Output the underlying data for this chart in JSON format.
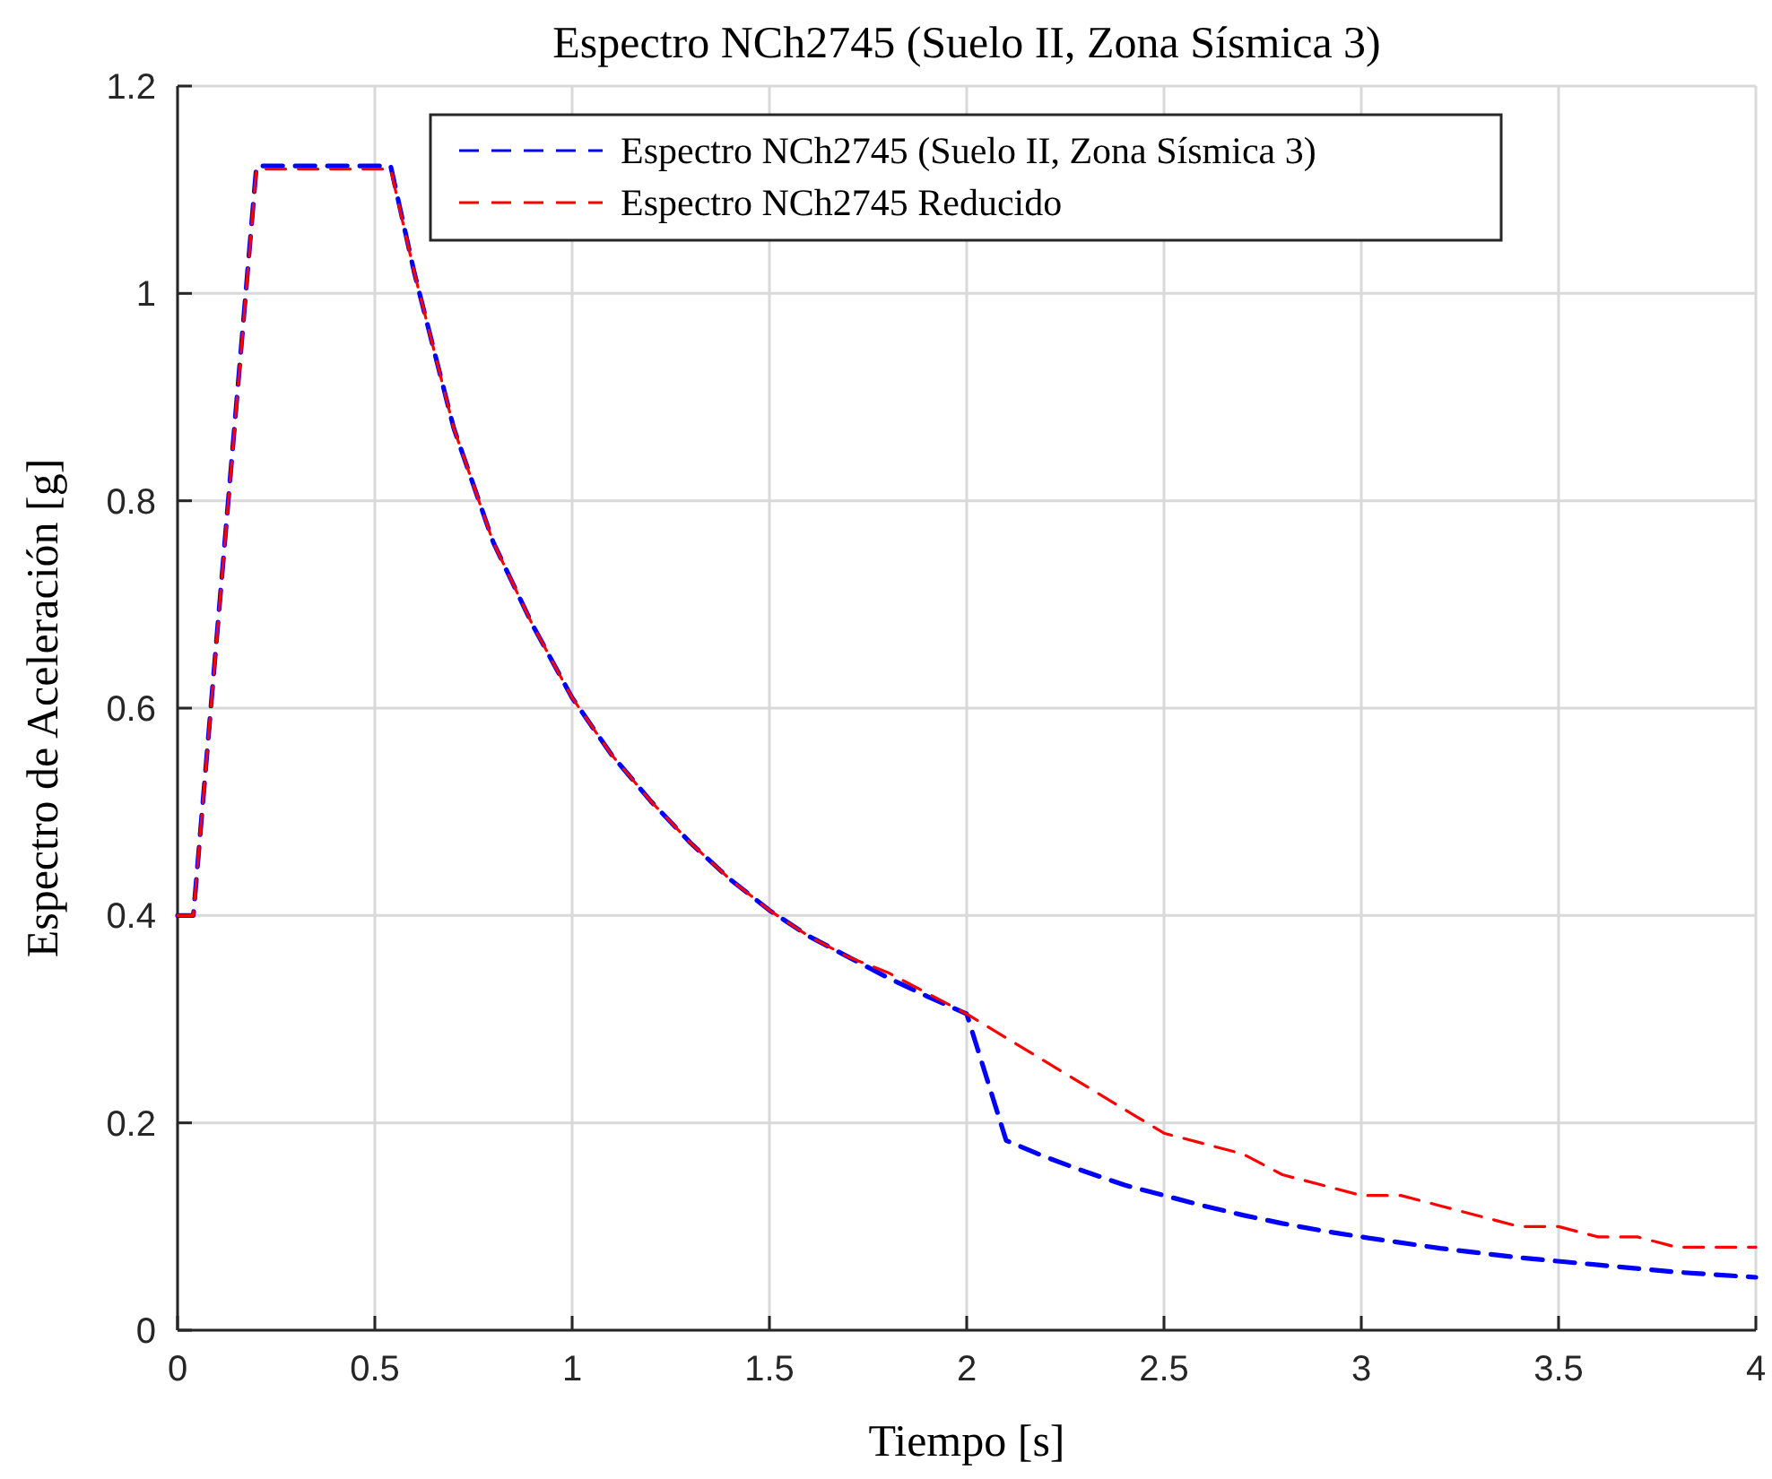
{
  "chart_data": {
    "type": "line",
    "title": "Espectro NCh2745 (Suelo II, Zona Sísmica 3)",
    "xlabel": "Tiempo [s]",
    "ylabel": "Espectro de Aceleración [g]",
    "xlim": [
      0,
      4
    ],
    "xticks": [
      0,
      0.5,
      1,
      1.5,
      2,
      2.5,
      3,
      3.5,
      4
    ],
    "ylim": [
      0,
      1.2
    ],
    "yticks": [
      0,
      0.2,
      0.4,
      0.6,
      0.8,
      1,
      1.2
    ],
    "grid": true,
    "legend": "top",
    "line_style": "dashed",
    "marker": "none",
    "series": [
      {
        "name": "Espectro NCh2745 (Suelo II, Zona Sísmica 3)",
        "color": "#0000ff",
        "x": [
          0,
          0.04,
          0.2,
          0.54,
          0.6,
          0.7,
          0.8,
          0.9,
          1,
          1.1,
          1.2,
          1.3,
          1.4,
          1.5,
          1.6,
          1.7,
          1.8,
          1.9,
          2,
          2.1,
          2.2,
          2.3,
          2.4,
          2.5,
          2.6,
          2.7,
          2.8,
          2.9,
          3,
          3.2,
          3.4,
          3.6,
          3.8,
          4
        ],
        "values": [
          0.4,
          0.4,
          1.123,
          1.123,
          1.02,
          0.87,
          0.76,
          0.68,
          0.61,
          0.555,
          0.51,
          0.47,
          0.435,
          0.405,
          0.38,
          0.36,
          0.34,
          0.322,
          0.305,
          0.183,
          0.167,
          0.153,
          0.14,
          0.13,
          0.12,
          0.111,
          0.103,
          0.096,
          0.09,
          0.079,
          0.07,
          0.063,
          0.056,
          0.051
        ]
      },
      {
        "name": "Espectro NCh2745 Reducido",
        "color": "#ff0000",
        "x": [
          0,
          0.04,
          0.2,
          0.54,
          0.6,
          0.7,
          0.8,
          0.9,
          1,
          1.1,
          1.2,
          1.3,
          1.4,
          1.5,
          1.6,
          1.7,
          1.8,
          1.9,
          2,
          2.5,
          2.6,
          2.7,
          2.8,
          2.9,
          3,
          3.1,
          3.2,
          3.3,
          3.4,
          3.5,
          3.6,
          3.7,
          3.8,
          3.9,
          4
        ],
        "values": [
          0.4,
          0.4,
          1.12,
          1.12,
          1.02,
          0.87,
          0.76,
          0.68,
          0.61,
          0.555,
          0.51,
          0.47,
          0.435,
          0.405,
          0.38,
          0.36,
          0.345,
          0.325,
          0.305,
          0.19,
          0.18,
          0.17,
          0.15,
          0.14,
          0.13,
          0.13,
          0.12,
          0.11,
          0.1,
          0.1,
          0.09,
          0.09,
          0.08,
          0.08,
          0.08
        ]
      }
    ]
  }
}
